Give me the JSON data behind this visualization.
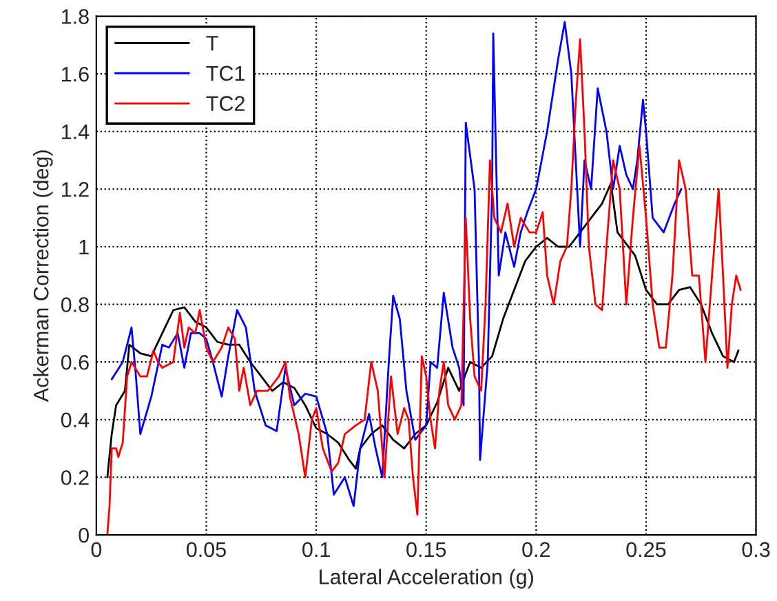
{
  "chart_data": {
    "type": "line",
    "xlabel": "Lateral Acceleration (g)",
    "ylabel": "Ackerman Correction (deg)",
    "xlim": [
      0,
      0.3
    ],
    "ylim": [
      0,
      1.8
    ],
    "xticks": [
      0,
      0.05,
      0.1,
      0.15,
      0.2,
      0.25,
      0.3
    ],
    "yticks": [
      0,
      0.2,
      0.4,
      0.6,
      0.8,
      1,
      1.2,
      1.4,
      1.6,
      1.8
    ],
    "grid": true,
    "legend": "top left",
    "line_style": "solid",
    "marker": "none",
    "series": [
      {
        "name": "T",
        "color": "#000000",
        "x": [
          0.005,
          0.007,
          0.009,
          0.013,
          0.015,
          0.02,
          0.025,
          0.03,
          0.035,
          0.04,
          0.045,
          0.05,
          0.055,
          0.06,
          0.065,
          0.07,
          0.075,
          0.08,
          0.085,
          0.09,
          0.095,
          0.1,
          0.105,
          0.11,
          0.115,
          0.118,
          0.12,
          0.125,
          0.13,
          0.135,
          0.14,
          0.145,
          0.15,
          0.155,
          0.16,
          0.165,
          0.17,
          0.175,
          0.18,
          0.185,
          0.19,
          0.195,
          0.2,
          0.205,
          0.21,
          0.215,
          0.22,
          0.225,
          0.23,
          0.234,
          0.237,
          0.245,
          0.25,
          0.255,
          0.26,
          0.265,
          0.27,
          0.275,
          0.28,
          0.285,
          0.29,
          0.292
        ],
        "values": [
          0.2,
          0.35,
          0.45,
          0.5,
          0.66,
          0.63,
          0.62,
          0.7,
          0.78,
          0.79,
          0.74,
          0.72,
          0.67,
          0.66,
          0.66,
          0.6,
          0.55,
          0.5,
          0.53,
          0.51,
          0.45,
          0.37,
          0.35,
          0.32,
          0.26,
          0.23,
          0.3,
          0.35,
          0.38,
          0.33,
          0.3,
          0.35,
          0.38,
          0.46,
          0.58,
          0.5,
          0.6,
          0.58,
          0.62,
          0.75,
          0.85,
          0.95,
          1.0,
          1.03,
          1.0,
          1.0,
          1.05,
          1.1,
          1.15,
          1.22,
          1.05,
          0.97,
          0.85,
          0.8,
          0.8,
          0.85,
          0.86,
          0.8,
          0.7,
          0.62,
          0.6,
          0.64
        ]
      },
      {
        "name": "TC1",
        "color": "#0000ff",
        "x": [
          0.007,
          0.012,
          0.016,
          0.018,
          0.02,
          0.025,
          0.03,
          0.033,
          0.037,
          0.04,
          0.043,
          0.047,
          0.05,
          0.053,
          0.057,
          0.06,
          0.064,
          0.068,
          0.072,
          0.077,
          0.082,
          0.086,
          0.09,
          0.095,
          0.1,
          0.105,
          0.108,
          0.113,
          0.117,
          0.12,
          0.124,
          0.127,
          0.13,
          0.133,
          0.135,
          0.138,
          0.141,
          0.145,
          0.15,
          0.152,
          0.155,
          0.158,
          0.162,
          0.165,
          0.167,
          0.168,
          0.172,
          0.174,
          0.1745,
          0.178,
          0.18,
          0.1805,
          0.183,
          0.186,
          0.19,
          0.193,
          0.196,
          0.2,
          0.205,
          0.21,
          0.213,
          0.216,
          0.218,
          0.22,
          0.222,
          0.225,
          0.228,
          0.232,
          0.235,
          0.238,
          0.241,
          0.244,
          0.246,
          0.2486,
          0.25,
          0.253,
          0.258,
          0.263,
          0.266
        ],
        "values": [
          0.54,
          0.6,
          0.72,
          0.55,
          0.35,
          0.48,
          0.66,
          0.65,
          0.7,
          0.58,
          0.7,
          0.7,
          0.68,
          0.6,
          0.48,
          0.62,
          0.78,
          0.72,
          0.5,
          0.38,
          0.36,
          0.58,
          0.45,
          0.49,
          0.48,
          0.35,
          0.14,
          0.2,
          0.1,
          0.3,
          0.42,
          0.3,
          0.2,
          0.6,
          0.83,
          0.75,
          0.5,
          0.33,
          0.38,
          0.6,
          0.58,
          0.84,
          0.65,
          0.58,
          0.45,
          1.43,
          1.2,
          0.6,
          0.26,
          0.6,
          1.2,
          1.74,
          0.9,
          1.05,
          0.93,
          1.05,
          1.12,
          1.2,
          1.4,
          1.65,
          1.78,
          1.6,
          1.3,
          1.0,
          1.3,
          1.2,
          1.55,
          1.4,
          1.2,
          1.35,
          1.25,
          1.2,
          1.3,
          1.51,
          1.4,
          1.1,
          1.05,
          1.15,
          1.2
        ]
      },
      {
        "name": "TC2",
        "color": "#ff0000",
        "x": [
          0.005,
          0.006,
          0.007,
          0.009,
          0.01,
          0.012,
          0.014,
          0.016,
          0.02,
          0.023,
          0.026,
          0.028,
          0.03,
          0.035,
          0.038,
          0.04,
          0.042,
          0.045,
          0.047,
          0.05,
          0.053,
          0.057,
          0.06,
          0.063,
          0.065,
          0.067,
          0.07,
          0.073,
          0.078,
          0.083,
          0.086,
          0.088,
          0.092,
          0.095,
          0.098,
          0.1,
          0.103,
          0.107,
          0.11,
          0.113,
          0.118,
          0.122,
          0.125,
          0.128,
          0.131,
          0.134,
          0.137,
          0.14,
          0.142,
          0.144,
          0.146,
          0.148,
          0.15,
          0.152,
          0.154,
          0.156,
          0.158,
          0.16,
          0.163,
          0.166,
          0.168,
          0.17,
          0.172,
          0.175,
          0.177,
          0.179,
          0.181,
          0.184,
          0.187,
          0.19,
          0.193,
          0.197,
          0.2,
          0.203,
          0.205,
          0.208,
          0.211,
          0.214,
          0.216,
          0.218,
          0.22,
          0.222,
          0.224,
          0.227,
          0.23,
          0.232,
          0.235,
          0.238,
          0.241,
          0.244,
          0.247,
          0.25,
          0.253,
          0.256,
          0.259,
          0.262,
          0.265,
          0.268,
          0.271,
          0.274,
          0.277,
          0.28,
          0.283,
          0.285,
          0.287,
          0.289,
          0.291,
          0.293
        ],
        "values": [
          0.0,
          0.1,
          0.3,
          0.3,
          0.27,
          0.32,
          0.55,
          0.6,
          0.55,
          0.55,
          0.64,
          0.6,
          0.58,
          0.6,
          0.77,
          0.65,
          0.72,
          0.7,
          0.78,
          0.65,
          0.6,
          0.65,
          0.72,
          0.68,
          0.5,
          0.58,
          0.45,
          0.5,
          0.5,
          0.55,
          0.6,
          0.48,
          0.35,
          0.2,
          0.4,
          0.44,
          0.3,
          0.22,
          0.25,
          0.35,
          0.38,
          0.4,
          0.6,
          0.5,
          0.2,
          0.55,
          0.35,
          0.44,
          0.4,
          0.2,
          0.07,
          0.62,
          0.55,
          0.4,
          0.3,
          0.5,
          0.6,
          0.45,
          0.4,
          0.45,
          1.1,
          0.75,
          0.55,
          0.5,
          0.8,
          1.3,
          1.1,
          1.05,
          1.15,
          1.0,
          1.1,
          1.05,
          1.05,
          1.12,
          0.9,
          0.8,
          0.95,
          1.0,
          1.2,
          1.5,
          1.72,
          1.4,
          1.0,
          0.8,
          0.78,
          1.0,
          1.3,
          1.2,
          0.8,
          1.1,
          1.35,
          1.1,
          0.8,
          0.65,
          0.65,
          0.9,
          1.3,
          1.2,
          0.9,
          0.9,
          0.6,
          0.9,
          1.2,
          0.9,
          0.58,
          0.8,
          0.9,
          0.85
        ]
      }
    ]
  }
}
